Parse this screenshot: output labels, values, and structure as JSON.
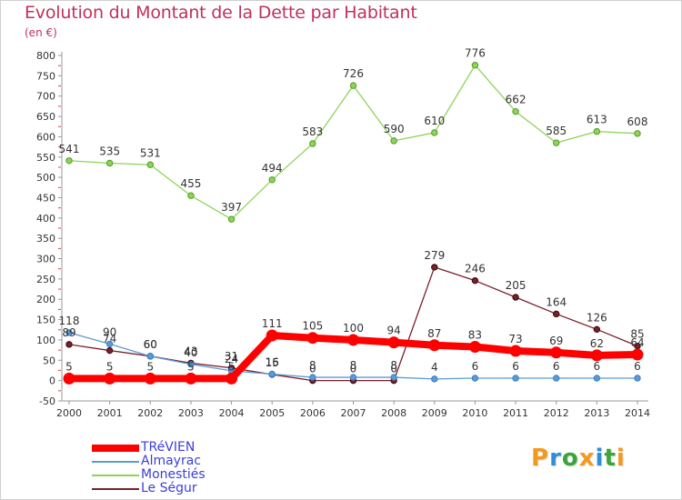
{
  "header": {
    "title": "Evolution du Montant de la Dette par Habitant",
    "subtitle": "(en €)"
  },
  "brand": {
    "logo_text": "Proxiti",
    "logo_colors": [
      "#f29a1e",
      "#2f8fd6",
      "#3aa63a",
      "#f29a1e",
      "#2f8fd6",
      "#3aa63a",
      "#f29a1e"
    ]
  },
  "chart_data": {
    "type": "line",
    "title": "Evolution du Montant de la Dette par Habitant",
    "subtitle": "(en €)",
    "x": [
      "2000",
      "2001",
      "2002",
      "2003",
      "2004",
      "2005",
      "2006",
      "2007",
      "2008",
      "2009",
      "2010",
      "2011",
      "2012",
      "2013",
      "2014"
    ],
    "ylim": [
      -50,
      800
    ],
    "yticks": [
      -50,
      0,
      50,
      100,
      150,
      200,
      250,
      300,
      350,
      400,
      450,
      500,
      550,
      600,
      650,
      700,
      750,
      800
    ],
    "grid": false,
    "legend_position": "bottom-left",
    "series": [
      {
        "name": "TRéVIEN",
        "color": "#ff0000",
        "values": [
          5,
          5,
          5,
          5,
          5,
          111,
          105,
          100,
          94,
          87,
          83,
          73,
          69,
          62,
          64
        ],
        "labels": [
          "5",
          "5",
          "5",
          "5",
          "5",
          "111",
          "105",
          "100",
          "94",
          "87",
          "83",
          "73",
          "69",
          "62",
          "64"
        ]
      },
      {
        "name": "Almayrac",
        "color": "#5b9bd5",
        "values": [
          118,
          90,
          60,
          40,
          24,
          16,
          8,
          8,
          8,
          4,
          6,
          6,
          6,
          6,
          6
        ],
        "labels": [
          "118",
          "90",
          "60",
          "40",
          "24",
          "16",
          "8",
          "8",
          "8",
          "4",
          "6",
          "6",
          "6",
          "6",
          "6"
        ]
      },
      {
        "name": "Monestiés",
        "color": "#8ed45a",
        "values": [
          541,
          535,
          531,
          455,
          397,
          494,
          583,
          726,
          590,
          610,
          776,
          662,
          585,
          613,
          608
        ],
        "labels": [
          "541",
          "535",
          "531",
          "455",
          "397",
          "494",
          "583",
          "726",
          "590",
          "610",
          "776",
          "662",
          "585",
          "613",
          "608"
        ]
      },
      {
        "name": "Le Ségur",
        "color": "#7a1f2a",
        "values": [
          89,
          74,
          60,
          43,
          31,
          15,
          0,
          0,
          0,
          279,
          246,
          205,
          164,
          126,
          85
        ],
        "labels": [
          "89",
          "74",
          "60",
          "43",
          "31",
          "15",
          "0",
          "0",
          "0",
          "279",
          "246",
          "205",
          "164",
          "126",
          "85"
        ]
      }
    ]
  }
}
